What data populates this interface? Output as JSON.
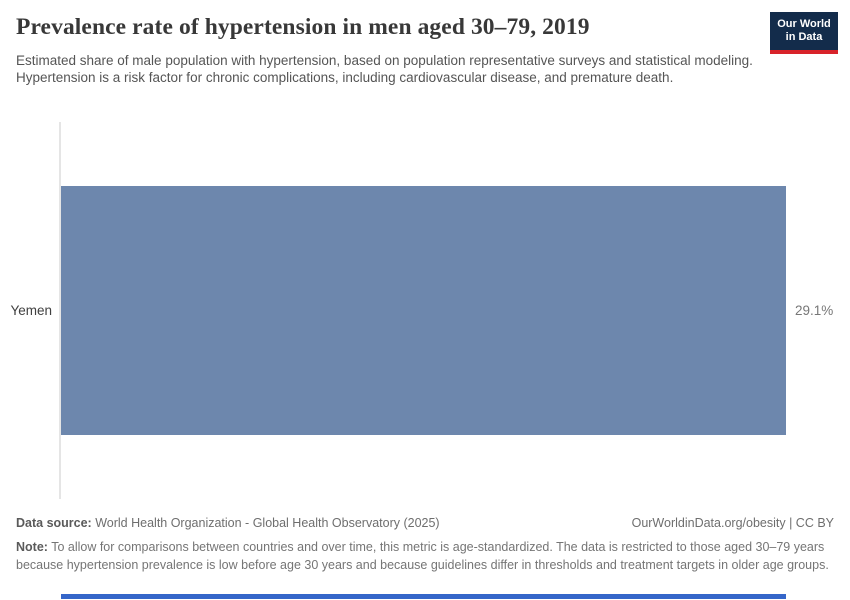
{
  "header": {
    "title": "Prevalence rate of hypertension in men aged 30–79, 2019",
    "subtitle": "Estimated share of male population with hypertension, based on population representative surveys and statistical modeling. Hypertension is a risk factor for chronic complications, including cardiovascular disease, and premature death.",
    "logo": {
      "line1": "Our World",
      "line2": "in Data"
    }
  },
  "chart_data": {
    "type": "bar",
    "orientation": "horizontal",
    "title": "Prevalence rate of hypertension in men aged 30–79, 2019",
    "categories": [
      "Yemen"
    ],
    "values": [
      29.1
    ],
    "value_labels": [
      "29.1%"
    ],
    "unit": "%",
    "xlim": [
      0,
      29.1
    ],
    "grid": false,
    "legend": false
  },
  "footer": {
    "data_source_label": "Data source:",
    "data_source": "World Health Organization - Global Health Observatory (2025)",
    "attribution": "OurWorldinData.org/obesity | CC BY",
    "note_label": "Note:",
    "note": "To allow for comparisons between countries and over time, this metric is age-standardized. The data is restricted to those aged 30–79 years because hypertension prevalence is low before age 30 years and because guidelines differ in thresholds and treatment targets in older age groups."
  },
  "colors": {
    "bar": "#6D87AD",
    "axis": "#E5E5E5",
    "logo_background": "#132C4B",
    "logo_accent": "#D8232A",
    "timeline": "#3566C9"
  }
}
